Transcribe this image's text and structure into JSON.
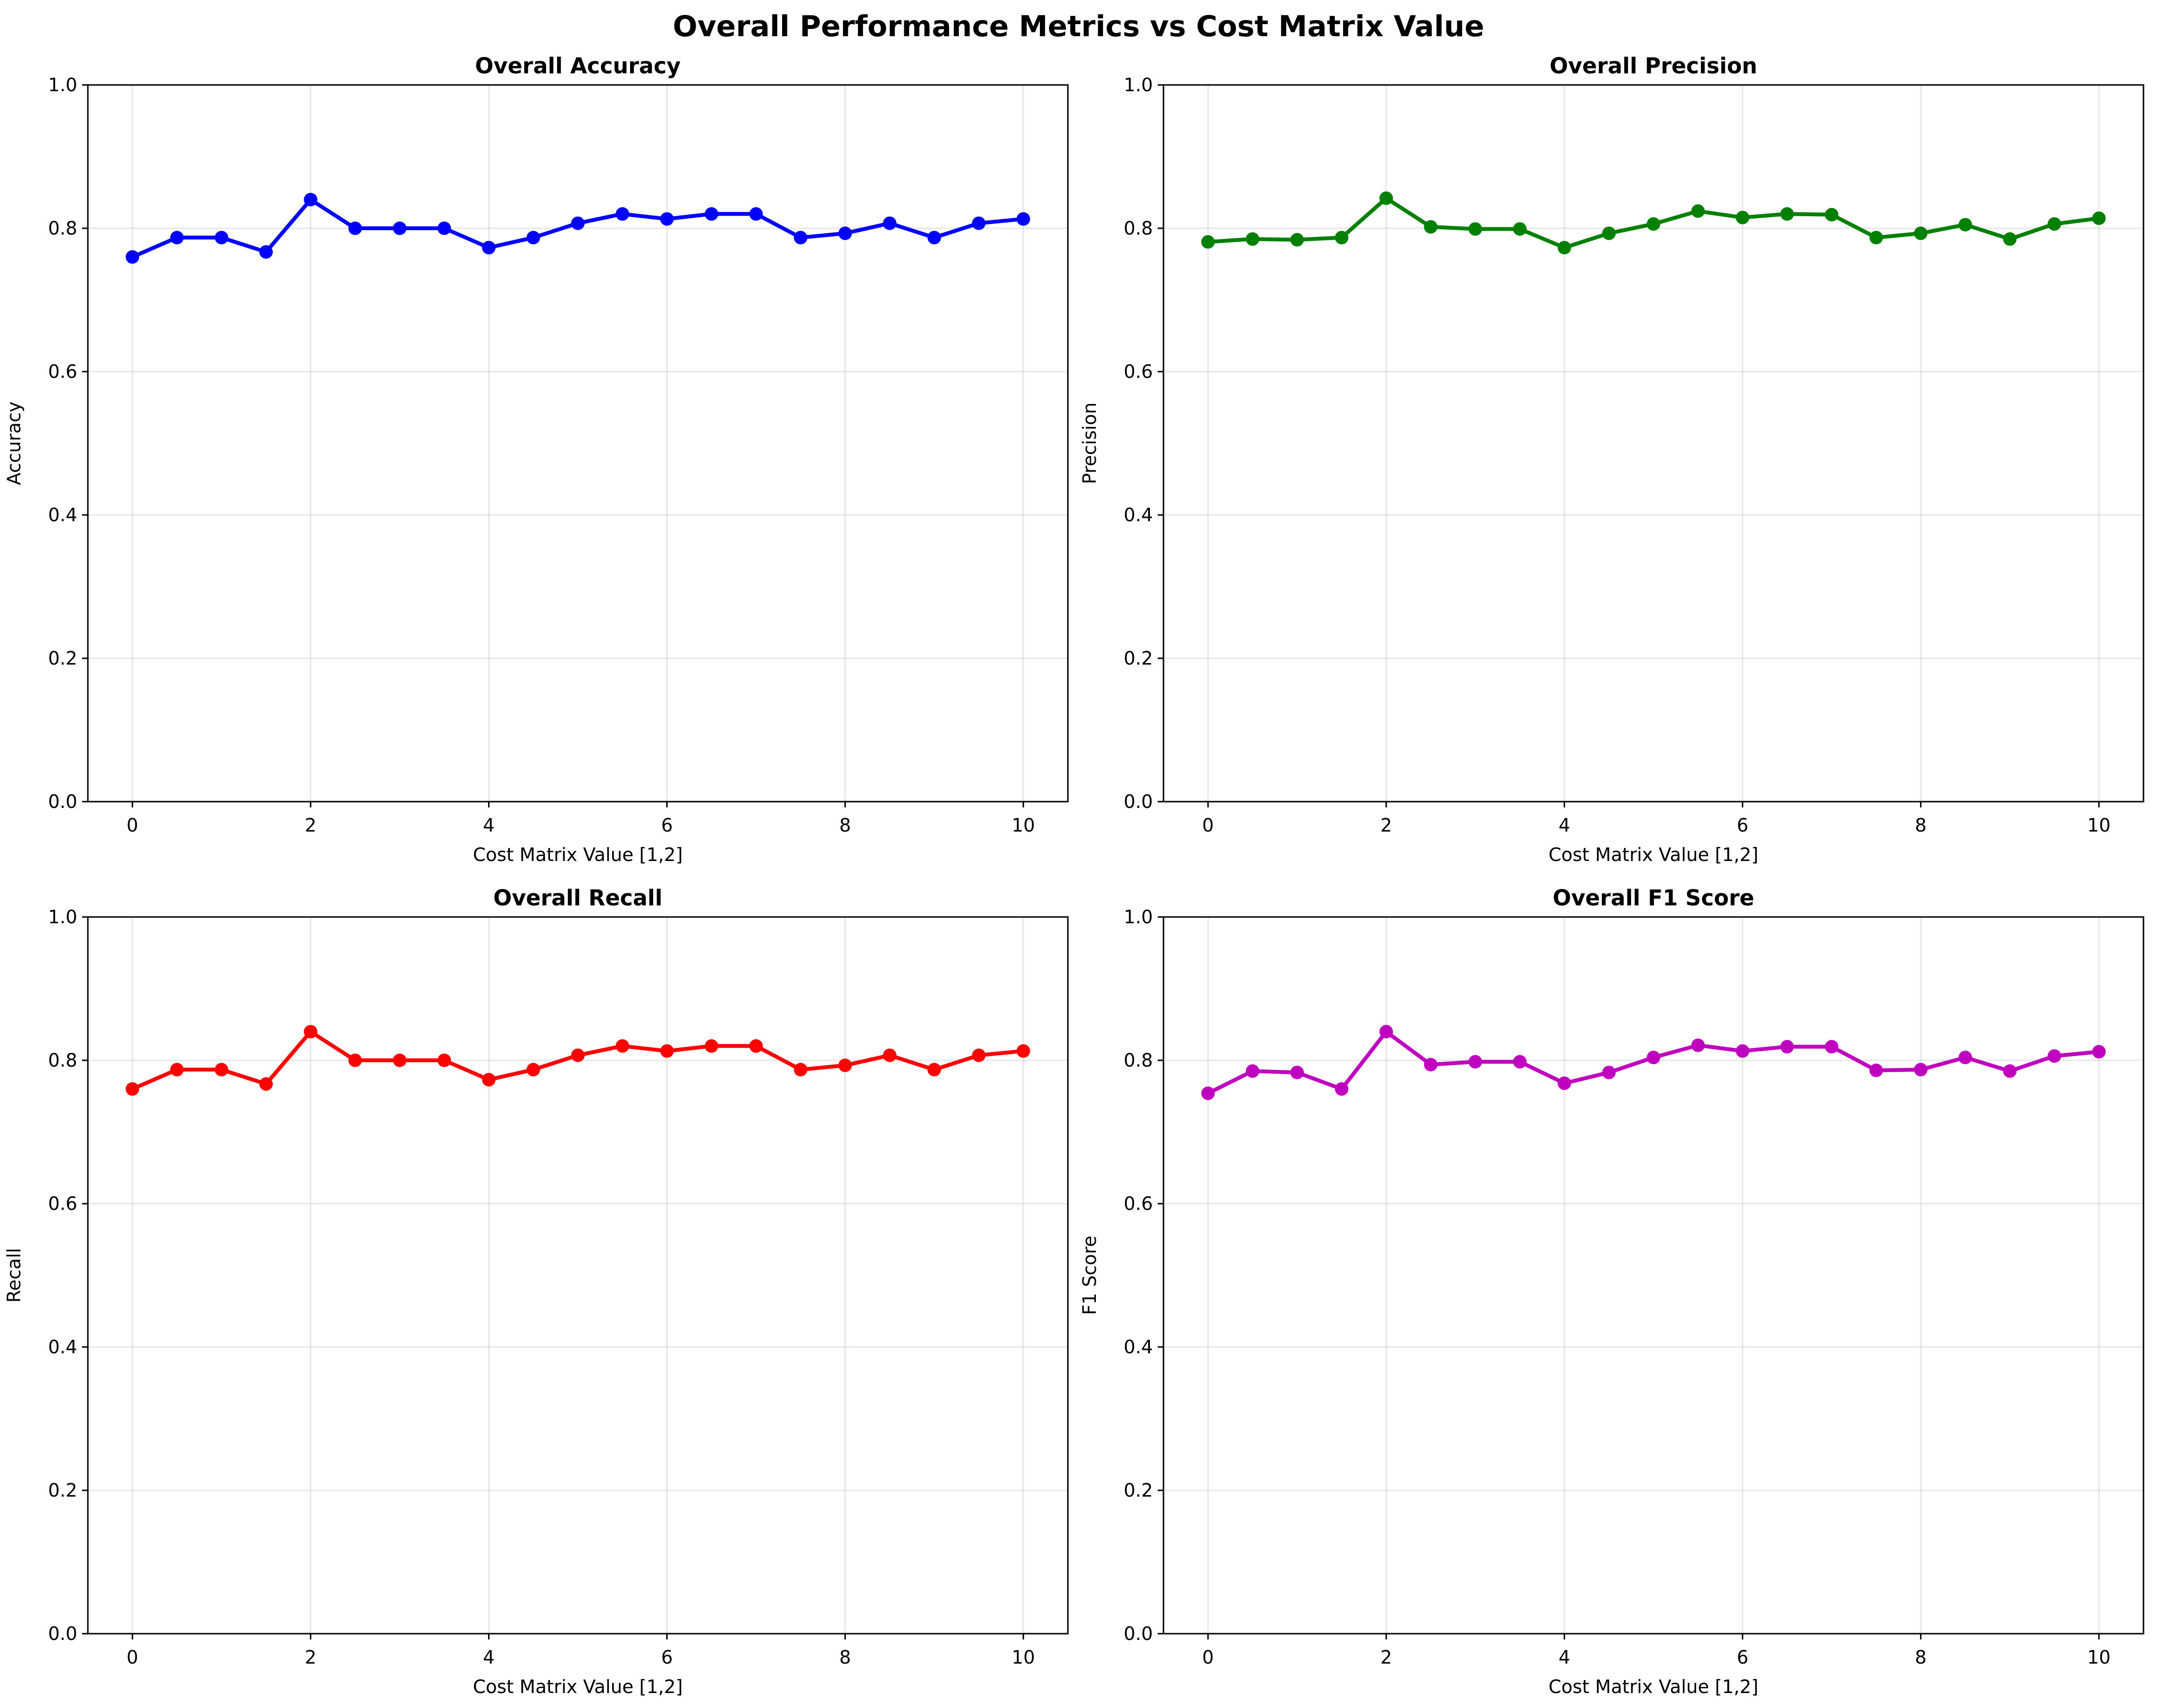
{
  "figure": {
    "suptitle": "Overall Performance Metrics vs Cost Matrix Value"
  },
  "chart_data": [
    {
      "type": "line",
      "title": "Overall Accuracy",
      "xlabel": "Cost Matrix Value [1,2]",
      "ylabel": "Accuracy",
      "xlim": [
        -0.5,
        10.5
      ],
      "ylim": [
        0,
        1
      ],
      "xticks": [
        "0",
        "2",
        "4",
        "6",
        "8",
        "10"
      ],
      "yticks": [
        "0.0",
        "0.2",
        "0.4",
        "0.6",
        "0.8",
        "1.0"
      ],
      "grid": true,
      "color": "#0000ff",
      "marker": "circle",
      "x": [
        0,
        0.5,
        1,
        1.5,
        2,
        2.5,
        3,
        3.5,
        4,
        4.5,
        5,
        5.5,
        6,
        6.5,
        7,
        7.5,
        8,
        8.5,
        9,
        9.5,
        10
      ],
      "values": [
        0.76,
        0.787,
        0.787,
        0.767,
        0.84,
        0.8,
        0.8,
        0.8,
        0.773,
        0.787,
        0.807,
        0.82,
        0.813,
        0.82,
        0.82,
        0.787,
        0.793,
        0.807,
        0.787,
        0.807,
        0.813
      ]
    },
    {
      "type": "line",
      "title": "Overall Precision",
      "xlabel": "Cost Matrix Value [1,2]",
      "ylabel": "Precision",
      "xlim": [
        -0.5,
        10.5
      ],
      "ylim": [
        0,
        1
      ],
      "xticks": [
        "0",
        "2",
        "4",
        "6",
        "8",
        "10"
      ],
      "yticks": [
        "0.0",
        "0.2",
        "0.4",
        "0.6",
        "0.8",
        "1.0"
      ],
      "grid": true,
      "color": "#008000",
      "marker": "circle",
      "x": [
        0,
        0.5,
        1,
        1.5,
        2,
        2.5,
        3,
        3.5,
        4,
        4.5,
        5,
        5.5,
        6,
        6.5,
        7,
        7.5,
        8,
        8.5,
        9,
        9.5,
        10
      ],
      "values": [
        0.781,
        0.785,
        0.784,
        0.787,
        0.842,
        0.802,
        0.799,
        0.799,
        0.773,
        0.793,
        0.806,
        0.824,
        0.815,
        0.82,
        0.819,
        0.787,
        0.793,
        0.805,
        0.785,
        0.806,
        0.814
      ]
    },
    {
      "type": "line",
      "title": "Overall Recall",
      "xlabel": "Cost Matrix Value [1,2]",
      "ylabel": "Recall",
      "xlim": [
        -0.5,
        10.5
      ],
      "ylim": [
        0,
        1
      ],
      "xticks": [
        "0",
        "2",
        "4",
        "6",
        "8",
        "10"
      ],
      "yticks": [
        "0.0",
        "0.2",
        "0.4",
        "0.6",
        "0.8",
        "1.0"
      ],
      "grid": true,
      "color": "#ff0000",
      "marker": "circle",
      "x": [
        0,
        0.5,
        1,
        1.5,
        2,
        2.5,
        3,
        3.5,
        4,
        4.5,
        5,
        5.5,
        6,
        6.5,
        7,
        7.5,
        8,
        8.5,
        9,
        9.5,
        10
      ],
      "values": [
        0.76,
        0.787,
        0.787,
        0.767,
        0.84,
        0.8,
        0.8,
        0.8,
        0.773,
        0.787,
        0.807,
        0.82,
        0.813,
        0.82,
        0.82,
        0.787,
        0.793,
        0.807,
        0.787,
        0.807,
        0.813
      ]
    },
    {
      "type": "line",
      "title": "Overall F1 Score",
      "xlabel": "Cost Matrix Value [1,2]",
      "ylabel": "F1 Score",
      "xlim": [
        -0.5,
        10.5
      ],
      "ylim": [
        0,
        1
      ],
      "xticks": [
        "0",
        "2",
        "4",
        "6",
        "8",
        "10"
      ],
      "yticks": [
        "0.0",
        "0.2",
        "0.4",
        "0.6",
        "0.8",
        "1.0"
      ],
      "grid": true,
      "color": "#bf00bf",
      "marker": "circle",
      "x": [
        0,
        0.5,
        1,
        1.5,
        2,
        2.5,
        3,
        3.5,
        4,
        4.5,
        5,
        5.5,
        6,
        6.5,
        7,
        7.5,
        8,
        8.5,
        9,
        9.5,
        10
      ],
      "values": [
        0.754,
        0.785,
        0.783,
        0.76,
        0.84,
        0.794,
        0.798,
        0.798,
        0.768,
        0.783,
        0.804,
        0.821,
        0.813,
        0.819,
        0.819,
        0.786,
        0.787,
        0.804,
        0.785,
        0.806,
        0.812
      ]
    }
  ]
}
